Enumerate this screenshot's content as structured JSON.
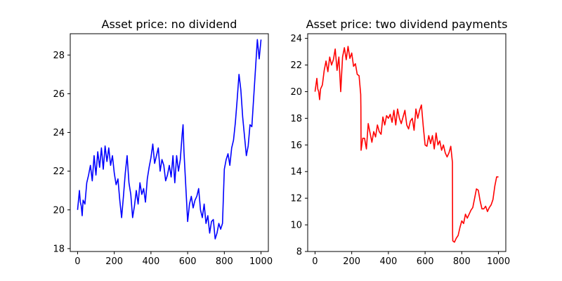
{
  "chart_data": [
    {
      "type": "line",
      "title": "Asset price: no dividend",
      "xlabel": "",
      "ylabel": "",
      "xlim": [
        -40,
        1040
      ],
      "ylim": [
        17.85,
        29.1
      ],
      "xticks": [
        0,
        200,
        400,
        600,
        800,
        1000
      ],
      "yticks": [
        18,
        20,
        22,
        24,
        26,
        28
      ],
      "grid": false,
      "series": [
        {
          "color": "#0000ff",
          "x": [
            0,
            10,
            15,
            20,
            25,
            30,
            40,
            50,
            60,
            70,
            80,
            90,
            100,
            110,
            120,
            130,
            140,
            150,
            160,
            170,
            180,
            190,
            200,
            210,
            220,
            230,
            240,
            250,
            260,
            270,
            280,
            290,
            300,
            310,
            320,
            330,
            340,
            350,
            360,
            370,
            380,
            390,
            400,
            410,
            420,
            430,
            440,
            450,
            460,
            470,
            480,
            490,
            500,
            510,
            520,
            530,
            540,
            550,
            560,
            570,
            575,
            580,
            590,
            600,
            610,
            620,
            630,
            640,
            650,
            660,
            670,
            680,
            690,
            700,
            710,
            720,
            730,
            740,
            750,
            760,
            770,
            780,
            790,
            800,
            810,
            820,
            830,
            840,
            850,
            860,
            870,
            880,
            890,
            900,
            910,
            920,
            930,
            940,
            950,
            960,
            970,
            980,
            990,
            1000
          ],
          "y": [
            20.0,
            21.0,
            20.4,
            20.2,
            19.7,
            20.5,
            20.3,
            21.4,
            21.8,
            22.3,
            21.5,
            22.8,
            21.8,
            23.0,
            22.2,
            23.2,
            22.1,
            23.3,
            22.5,
            23.2,
            22.3,
            22.8,
            21.9,
            21.3,
            21.6,
            20.5,
            19.6,
            20.7,
            21.9,
            22.8,
            21.4,
            20.8,
            19.6,
            20.2,
            21.0,
            20.3,
            21.4,
            20.8,
            21.1,
            20.4,
            21.6,
            22.2,
            22.7,
            23.4,
            22.4,
            22.8,
            23.2,
            22.0,
            22.6,
            22.3,
            21.5,
            21.8,
            22.3,
            21.7,
            22.8,
            21.4,
            22.8,
            22.0,
            22.6,
            23.9,
            24.4,
            23.0,
            21.2,
            19.4,
            20.3,
            20.7,
            20.1,
            20.5,
            20.7,
            21.1,
            20.0,
            19.6,
            20.3,
            19.3,
            19.7,
            18.8,
            19.4,
            19.5,
            18.5,
            18.8,
            19.3,
            19.0,
            19.3,
            22.1,
            22.6,
            22.9,
            22.3,
            23.2,
            23.6,
            24.5,
            25.7,
            27.0,
            26.2,
            24.8,
            23.8,
            22.8,
            23.3,
            24.4,
            24.3,
            25.8,
            27.3,
            28.8,
            27.8,
            28.8
          ]
        }
      ]
    },
    {
      "type": "line",
      "title": "Asset price: two dividend payments",
      "xlabel": "",
      "ylabel": "",
      "xlim": [
        -40,
        1040
      ],
      "ylim": [
        8.0,
        24.35
      ],
      "xticks": [
        0,
        200,
        400,
        600,
        800,
        1000
      ],
      "yticks": [
        8,
        10,
        12,
        14,
        16,
        18,
        20,
        22,
        24
      ],
      "grid": false,
      "series": [
        {
          "color": "#ff0000",
          "x": [
            0,
            10,
            15,
            20,
            25,
            30,
            40,
            50,
            60,
            70,
            80,
            90,
            100,
            110,
            120,
            130,
            140,
            150,
            160,
            170,
            180,
            190,
            200,
            210,
            220,
            230,
            240,
            249,
            250,
            251,
            260,
            270,
            280,
            290,
            300,
            310,
            320,
            330,
            340,
            350,
            360,
            370,
            380,
            390,
            400,
            410,
            420,
            430,
            440,
            450,
            460,
            470,
            480,
            490,
            500,
            510,
            520,
            530,
            540,
            550,
            560,
            570,
            580,
            590,
            600,
            610,
            620,
            630,
            640,
            650,
            660,
            670,
            680,
            690,
            700,
            710,
            720,
            730,
            740,
            749,
            750,
            751,
            760,
            770,
            780,
            790,
            800,
            810,
            820,
            830,
            840,
            850,
            860,
            870,
            880,
            890,
            900,
            910,
            920,
            930,
            940,
            950,
            960,
            970,
            980,
            990,
            1000
          ],
          "y": [
            20.0,
            21.0,
            20.2,
            20.0,
            19.4,
            20.2,
            20.5,
            21.6,
            22.3,
            21.5,
            22.6,
            22.0,
            22.4,
            23.2,
            21.6,
            22.6,
            20.0,
            22.6,
            23.3,
            22.4,
            23.4,
            22.5,
            22.9,
            21.9,
            22.1,
            21.3,
            21.2,
            19.8,
            18.8,
            15.6,
            16.5,
            16.5,
            15.7,
            17.6,
            16.9,
            16.2,
            17.0,
            16.6,
            17.5,
            17.0,
            16.8,
            18.1,
            17.5,
            18.2,
            18.0,
            18.3,
            17.7,
            18.6,
            17.5,
            18.7,
            18.0,
            17.6,
            18.1,
            18.6,
            17.5,
            17.2,
            17.8,
            18.0,
            17.1,
            18.7,
            18.0,
            18.6,
            19.0,
            17.4,
            16.0,
            15.9,
            16.7,
            16.1,
            16.7,
            15.7,
            16.9,
            16.0,
            16.3,
            15.6,
            16.0,
            15.4,
            15.1,
            15.4,
            15.9,
            14.7,
            9.3,
            8.8,
            8.7,
            9.0,
            9.2,
            9.8,
            10.3,
            10.1,
            10.8,
            10.5,
            10.8,
            11.1,
            11.3,
            12.0,
            12.7,
            12.6,
            11.8,
            11.2,
            11.2,
            11.4,
            11.0,
            11.3,
            11.5,
            11.9,
            12.9,
            13.6,
            13.6
          ]
        }
      ]
    }
  ]
}
